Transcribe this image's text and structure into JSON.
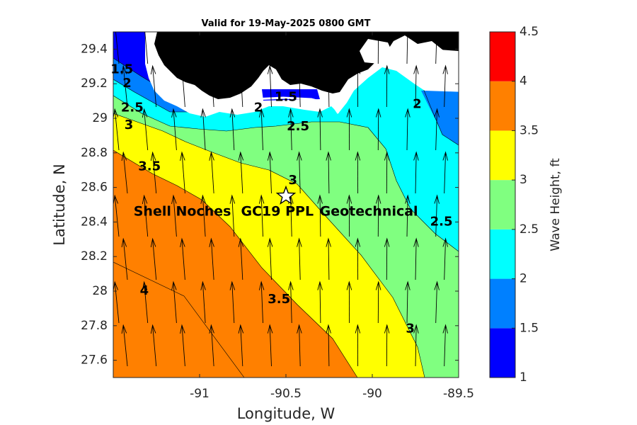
{
  "chart_data": {
    "type": "contourf",
    "title": "Valid for 19-May-2025 0800 GMT",
    "xlabel": "Longitude, W",
    "ylabel": "Latitude, N",
    "xlim": [
      -91.5,
      -89.5
    ],
    "ylim": [
      27.5,
      29.5
    ],
    "xticks": [
      -91,
      -90.5,
      -90,
      -89.5
    ],
    "xtick_labels": [
      "-91",
      "-90.5",
      "-90",
      "-89.5"
    ],
    "yticks": [
      27.6,
      27.8,
      28,
      28.2,
      28.4,
      28.6,
      28.8,
      29,
      29.2,
      29.4
    ],
    "ytick_labels": [
      "27.6",
      "27.8",
      "28",
      "28.2",
      "28.4",
      "28.6",
      "28.8",
      "29",
      "29.2",
      "29.4"
    ],
    "colorbar": {
      "label": "Wave Height, ft",
      "levels": [
        1,
        1.5,
        2,
        2.5,
        3,
        3.5,
        4,
        4.5
      ],
      "tick_labels": [
        "1",
        "1.5",
        "2",
        "2.5",
        "3",
        "3.5",
        "4",
        "4.5"
      ],
      "colors": [
        "#0000ff",
        "#0080ff",
        "#00ffff",
        "#80ff80",
        "#ffff00",
        "#ff8000",
        "#ff0000"
      ]
    },
    "contour_labels": [
      {
        "text": "1.5",
        "lon": -91.45,
        "lat": 29.28
      },
      {
        "text": "2",
        "lon": -91.42,
        "lat": 29.2
      },
      {
        "text": "2.5",
        "lon": -91.39,
        "lat": 29.06
      },
      {
        "text": "3",
        "lon": -91.41,
        "lat": 28.96
      },
      {
        "text": "3.5",
        "lon": -91.29,
        "lat": 28.72
      },
      {
        "text": "4",
        "lon": -91.32,
        "lat": 28.0
      },
      {
        "text": "1.5",
        "lon": -90.5,
        "lat": 29.12
      },
      {
        "text": "2",
        "lon": -90.66,
        "lat": 29.06
      },
      {
        "text": "2.5",
        "lon": -90.43,
        "lat": 28.95
      },
      {
        "text": "2",
        "lon": -89.74,
        "lat": 29.08
      },
      {
        "text": "3",
        "lon": -90.46,
        "lat": 28.64
      },
      {
        "text": "2.5",
        "lon": -89.6,
        "lat": 28.4
      },
      {
        "text": "3.5",
        "lon": -90.54,
        "lat": 27.95
      },
      {
        "text": "3",
        "lon": -89.78,
        "lat": 27.78
      }
    ],
    "site": {
      "lon": -90.5,
      "lat": 28.55,
      "marker": "star"
    },
    "annotations": [
      {
        "text": "Shell Noches",
        "lon": -91.1,
        "lat": 28.46
      },
      {
        "text": "GC19 PPL",
        "lon": -90.55,
        "lat": 28.46
      },
      {
        "text": "Geotechnical",
        "lon": -90.02,
        "lat": 28.46
      }
    ],
    "land_color": "#000000",
    "vector_field": "wave direction arrows pointing roughly north"
  }
}
